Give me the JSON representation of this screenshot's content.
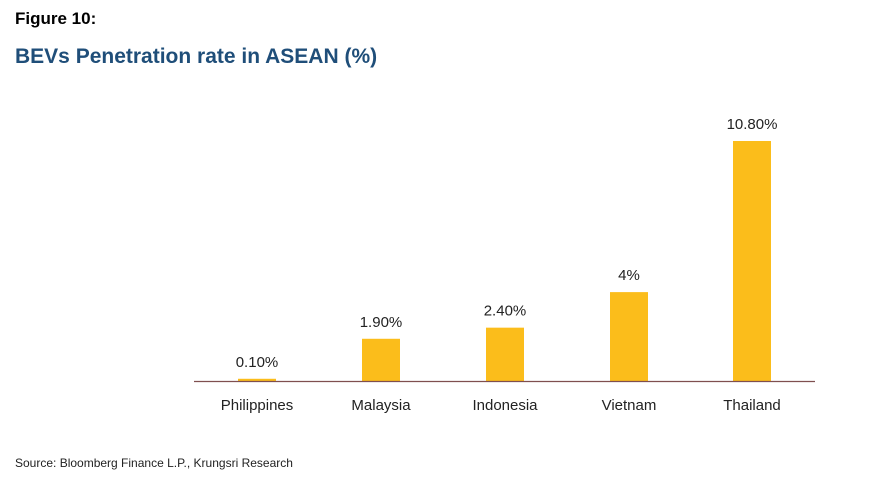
{
  "figure_label": "Figure 10:",
  "source": "Source: Bloomberg Finance L.P., Krungsri Research",
  "colors": {
    "bar": "#FBBD1B",
    "title": "#1F4E79",
    "axis": "#7F4F4F"
  },
  "chart_data": {
    "type": "bar",
    "title": "BEVs Penetration rate in ASEAN (%)",
    "xlabel": "",
    "ylabel": "",
    "categories": [
      "Philippines",
      "Malaysia",
      "Indonesia",
      "Vietnam",
      "Thailand"
    ],
    "values": [
      0.1,
      1.9,
      2.4,
      4,
      10.8
    ],
    "data_labels": [
      "0.10%",
      "1.90%",
      "2.40%",
      "4%",
      "10.80%"
    ],
    "ylim": [
      0,
      10.8
    ],
    "grid": false,
    "legend": "none"
  }
}
